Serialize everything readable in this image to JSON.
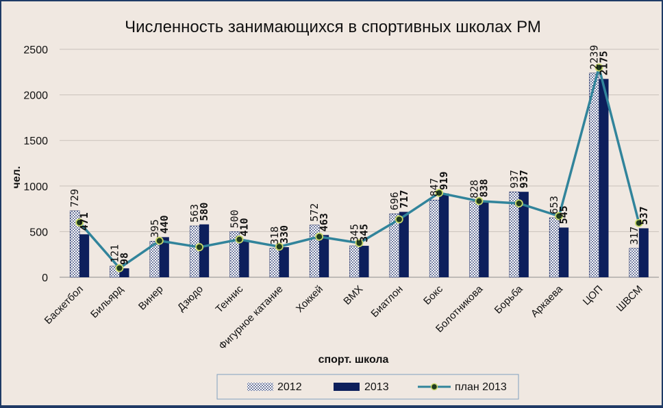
{
  "chart_data": {
    "type": "bar",
    "title": "Численность занимающихся в спортивных школах РМ",
    "xlabel": "спорт. школа",
    "ylabel": "чел.",
    "ylim": [
      0,
      2500
    ],
    "yticks": [
      "0",
      "500",
      "1000",
      "1500",
      "2000",
      "2500"
    ],
    "grid": true,
    "legend_position": "bottom",
    "categories": [
      "Баскетбол",
      "Бильярд",
      "Винер",
      "Дзюдо",
      "Теннис",
      "Фигурное катание",
      "Хоккей",
      "BMX",
      "Биатлон",
      "Бокс",
      "Болотникова",
      "Борьба",
      "Аркаева",
      "ЦОП",
      "ШВСМ"
    ],
    "series": [
      {
        "name": "2012",
        "kind": "bar",
        "pattern": "dotted",
        "values": [
          729,
          121,
          395,
          563,
          500,
          318,
          572,
          345,
          696,
          847,
          828,
          937,
          653,
          2239,
          317
        ]
      },
      {
        "name": "2013",
        "kind": "bar",
        "color": "#0d1f5c",
        "values": [
          471,
          98,
          440,
          580,
          410,
          330,
          463,
          345,
          717,
          919,
          838,
          937,
          545,
          2175,
          537
        ]
      },
      {
        "name": "план 2013",
        "kind": "line",
        "color": "#31849b",
        "marker_color": "#1f3b1f",
        "values": [
          600,
          100,
          400,
          330,
          415,
          335,
          445,
          375,
          635,
          925,
          835,
          810,
          670,
          2300,
          595
        ]
      }
    ]
  },
  "legend": {
    "items": [
      "2012",
      "2013",
      "план 2013"
    ]
  },
  "colors": {
    "background": "#f0e8e1",
    "bar2013": "#0d1f5c",
    "line": "#31849b",
    "grid": "#c9c1ba"
  }
}
